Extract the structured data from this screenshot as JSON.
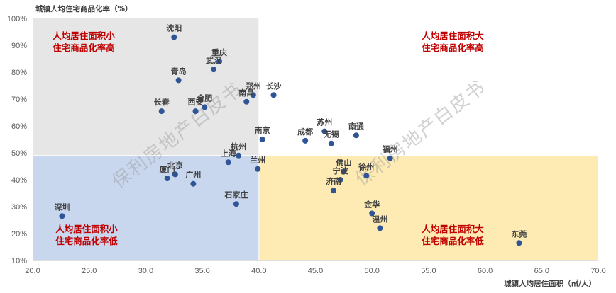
{
  "chart_data": {
    "type": "scatter",
    "ylabel": "城镇人均住宅商品化率（%）",
    "xlabel": "城镇人均居住面积（㎡/人）",
    "xlim": [
      20,
      70
    ],
    "ylim": [
      10,
      100
    ],
    "x_ticks": [
      "20.0",
      "25.0",
      "30.0",
      "35.0",
      "40.0",
      "45.0",
      "50.0",
      "55.0",
      "60.0",
      "65.0",
      "70.0"
    ],
    "y_ticks": [
      "10%",
      "20%",
      "30%",
      "40%",
      "50%",
      "60%",
      "70%",
      "80%",
      "90%",
      "100%"
    ],
    "reference_lines": {
      "x": 40.0,
      "y": 49
    },
    "grid": false,
    "marker_color": "#2f5597",
    "quadrant_colors": {
      "top_left": "#e6e6e6",
      "bottom_left": "#c9d7ee",
      "bottom_right": "#fdebb3"
    },
    "quadrants": {
      "top_left": [
        "人均居住面积小",
        "住宅商品化率高"
      ],
      "top_right": [
        "人均居住面积大",
        "住宅商品化率高"
      ],
      "bottom_left": [
        "人均居住面积小",
        "住宅商品化率低"
      ],
      "bottom_right": [
        "人均居住面积大",
        "住宅商品化率低"
      ]
    },
    "watermark": "保利房地产白皮书",
    "points": [
      {
        "label": "沈阳",
        "x": 32.5,
        "y": 93
      },
      {
        "label": "重庆",
        "x": 36.5,
        "y": 84
      },
      {
        "label": "武汉",
        "x": 36.0,
        "y": 81
      },
      {
        "label": "青岛",
        "x": 32.9,
        "y": 77
      },
      {
        "label": "郑州",
        "x": 39.5,
        "y": 71.5
      },
      {
        "label": "长沙",
        "x": 41.3,
        "y": 71.5
      },
      {
        "label": "南昌",
        "x": 38.9,
        "y": 69
      },
      {
        "label": "合肥",
        "x": 35.2,
        "y": 67
      },
      {
        "label": "长春",
        "x": 31.4,
        "y": 65.5
      },
      {
        "label": "西安",
        "x": 34.4,
        "y": 65.5
      },
      {
        "label": "南京",
        "x": 40.3,
        "y": 55
      },
      {
        "label": "成都",
        "x": 44.1,
        "y": 54.5
      },
      {
        "label": "苏州",
        "x": 45.8,
        "y": 58
      },
      {
        "label": "无锡",
        "x": 46.4,
        "y": 53.5
      },
      {
        "label": "南通",
        "x": 48.6,
        "y": 56.5
      },
      {
        "label": "福州",
        "x": 51.6,
        "y": 48
      },
      {
        "label": "杭州",
        "x": 38.2,
        "y": 49
      },
      {
        "label": "上海",
        "x": 37.3,
        "y": 46.5
      },
      {
        "label": "兰州",
        "x": 39.9,
        "y": 44
      },
      {
        "label": "北京",
        "x": 32.6,
        "y": 42
      },
      {
        "label": "厦门",
        "x": 31.9,
        "y": 40.5
      },
      {
        "label": "广州",
        "x": 34.2,
        "y": 38.5
      },
      {
        "label": "佛山",
        "x": 47.5,
        "y": 43
      },
      {
        "label": "宁波",
        "x": 47.2,
        "y": 40
      },
      {
        "label": "徐州",
        "x": 49.5,
        "y": 41.5
      },
      {
        "label": "济南",
        "x": 46.6,
        "y": 36
      },
      {
        "label": "石家庄",
        "x": 38.0,
        "y": 31
      },
      {
        "label": "金华",
        "x": 50.0,
        "y": 27.5
      },
      {
        "label": "温州",
        "x": 50.7,
        "y": 22
      },
      {
        "label": "深圳",
        "x": 22.6,
        "y": 26.5
      },
      {
        "label": "东莞",
        "x": 63.0,
        "y": 16.5
      }
    ]
  }
}
